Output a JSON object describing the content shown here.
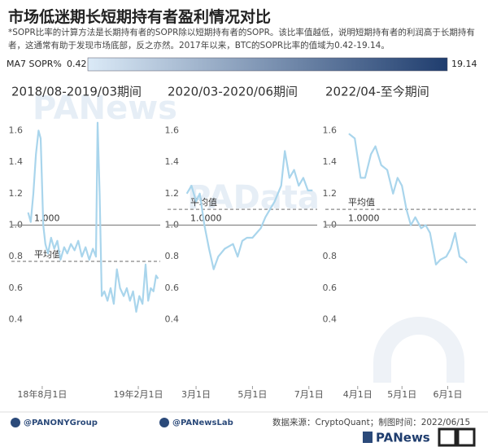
{
  "header": {
    "title": "市场低迷期长短期持有者盈利情况对比",
    "subtitle": "*SOPR比率的计算方法是长期持有者的SOPR除以短期持有者的SOPR。该比率值越低，说明短期持有者的利润高于长期持有者，这通常有助于发现市场底部，反之亦然。2017年以来，BTC的SOPR比率的值域为0.42-19.14。"
  },
  "colorbar": {
    "label": "MA7 SOPR%",
    "min": 0.42,
    "max": 19.14,
    "colors": [
      "#dbeaf7",
      "#1f3d6e"
    ]
  },
  "watermarks": [
    "PANews",
    "PAData"
  ],
  "chart_data": [
    {
      "type": "line",
      "title": "2018/08-2019/03期间",
      "color": "#a9d5ec",
      "x": [
        "2018-07-05",
        "2018-07-10",
        "2018-07-15",
        "2018-07-20",
        "2018-07-25",
        "2018-07-29",
        "2018-08-03",
        "2018-08-07",
        "2018-08-12",
        "2018-08-18",
        "2018-08-24",
        "2018-08-30",
        "2018-09-05",
        "2018-09-12",
        "2018-09-18",
        "2018-09-25",
        "2018-10-02",
        "2018-10-09",
        "2018-10-16",
        "2018-10-23",
        "2018-10-30",
        "2018-11-06",
        "2018-11-12",
        "2018-11-15",
        "2018-11-19",
        "2018-11-23",
        "2018-11-28",
        "2018-12-04",
        "2018-12-10",
        "2018-12-16",
        "2018-12-22",
        "2018-12-28",
        "2019-01-04",
        "2019-01-10",
        "2019-01-16",
        "2019-01-22",
        "2019-01-28",
        "2019-02-03",
        "2019-02-09",
        "2019-02-15",
        "2019-02-20",
        "2019-02-25",
        "2019-03-02",
        "2019-03-07",
        "2019-03-11"
      ],
      "values": [
        1.08,
        1.02,
        1.2,
        1.45,
        1.6,
        1.55,
        1.0,
        0.88,
        0.82,
        0.92,
        0.85,
        0.9,
        0.78,
        0.86,
        0.82,
        0.88,
        0.84,
        0.9,
        0.8,
        0.86,
        0.78,
        0.85,
        0.8,
        1.65,
        1.2,
        0.55,
        0.58,
        0.52,
        0.6,
        0.5,
        0.72,
        0.6,
        0.55,
        0.6,
        0.52,
        0.58,
        0.45,
        0.55,
        0.5,
        0.75,
        0.52,
        0.6,
        0.58,
        0.68,
        0.66
      ],
      "xlim": [
        "2018-07-01",
        "2019-03-15"
      ],
      "xticks": [
        {
          "value": "2018-08-01",
          "label": "18年8月1日"
        },
        {
          "value": "2019-02-01",
          "label": "19年2月1日"
        }
      ],
      "ylim": [
        0,
        1.7
      ],
      "yticks": [
        0.4,
        0.6,
        0.8,
        {
          "value": 1,
          "label": "1.0"
        },
        1.2,
        1.4,
        1.6
      ],
      "reference_lines": [
        {
          "value": 1,
          "label": "1.000",
          "style": "solid"
        },
        {
          "value": 0.77,
          "label": "平均值",
          "style": "dashed"
        }
      ]
    },
    {
      "type": "line",
      "title": "2020/03-2020/06期间",
      "color": "#a9d5ec",
      "x": [
        "2020-02-20",
        "2020-02-25",
        "2020-03-01",
        "2020-03-05",
        "2020-03-10",
        "2020-03-15",
        "2020-03-20",
        "2020-03-25",
        "2020-04-01",
        "2020-04-10",
        "2020-04-15",
        "2020-04-20",
        "2020-04-25",
        "2020-05-01",
        "2020-05-10",
        "2020-05-15",
        "2020-05-20",
        "2020-05-25",
        "2020-06-01",
        "2020-06-05",
        "2020-06-10",
        "2020-06-15",
        "2020-06-20",
        "2020-06-25",
        "2020-06-30",
        "2020-07-05"
      ],
      "values": [
        1.2,
        1.25,
        1.15,
        1.2,
        1.0,
        0.85,
        0.72,
        0.8,
        0.85,
        0.88,
        0.8,
        0.9,
        0.92,
        0.92,
        0.98,
        1.05,
        1.1,
        1.15,
        1.25,
        1.47,
        1.3,
        1.35,
        1.25,
        1.3,
        1.22,
        1.22
      ],
      "xlim": [
        "2020-02-15",
        "2020-07-10"
      ],
      "xticks": [
        {
          "value": "2020-03-01",
          "label": "3月1日"
        },
        {
          "value": "2020-05-01",
          "label": "5月1日"
        },
        {
          "value": "2020-07-01",
          "label": "7月1日"
        }
      ],
      "ylim": [
        0,
        1.7
      ],
      "yticks": [
        0.4,
        0.6,
        0.8,
        {
          "value": 1,
          "label": "1.0"
        },
        1.2,
        1.4,
        1.6
      ],
      "reference_lines": [
        {
          "value": 1,
          "label": "1.0000",
          "style": "solid"
        },
        {
          "value": 1.1,
          "label": "平均值",
          "style": "dashed"
        }
      ]
    },
    {
      "type": "line",
      "title": "2022/04-至今期间",
      "color": "#a9d5ec",
      "x": [
        "2022-03-26",
        "2022-03-30",
        "2022-04-03",
        "2022-04-06",
        "2022-04-10",
        "2022-04-13",
        "2022-04-17",
        "2022-04-21",
        "2022-04-25",
        "2022-04-28",
        "2022-05-01",
        "2022-05-04",
        "2022-05-07",
        "2022-05-10",
        "2022-05-14",
        "2022-05-17",
        "2022-05-20",
        "2022-05-24",
        "2022-05-27",
        "2022-05-31",
        "2022-06-03",
        "2022-06-06",
        "2022-06-09",
        "2022-06-12",
        "2022-06-14"
      ],
      "values": [
        1.58,
        1.55,
        1.3,
        1.3,
        1.45,
        1.5,
        1.38,
        1.35,
        1.2,
        1.3,
        1.25,
        1.1,
        1.0,
        1.05,
        0.98,
        1.0,
        0.95,
        0.75,
        0.78,
        0.8,
        0.85,
        0.95,
        0.8,
        0.78,
        0.76
      ],
      "xlim": [
        "2022-03-20",
        "2022-06-20"
      ],
      "xticks": [
        {
          "value": "2022-04-01",
          "label": "4月1日"
        },
        {
          "value": "2022-05-01",
          "label": "5月1日"
        },
        {
          "value": "2022-06-01",
          "label": "6月1日"
        }
      ],
      "ylim": [
        0,
        1.7
      ],
      "yticks": [
        0.4,
        0.6,
        0.8,
        {
          "value": 1,
          "label": "1.0"
        },
        1.2,
        1.4,
        1.6
      ],
      "reference_lines": [
        {
          "value": 1,
          "label": "1.0000",
          "style": "solid"
        },
        {
          "value": 1.1,
          "label": "平均值",
          "style": "dashed"
        }
      ]
    }
  ],
  "footer": {
    "twitter": "@PANONYGroup",
    "facebook": "@PANewsLab",
    "source": "数据来源：CryptoQuant；制图时间：2022/06/15",
    "logo": "PANews"
  }
}
